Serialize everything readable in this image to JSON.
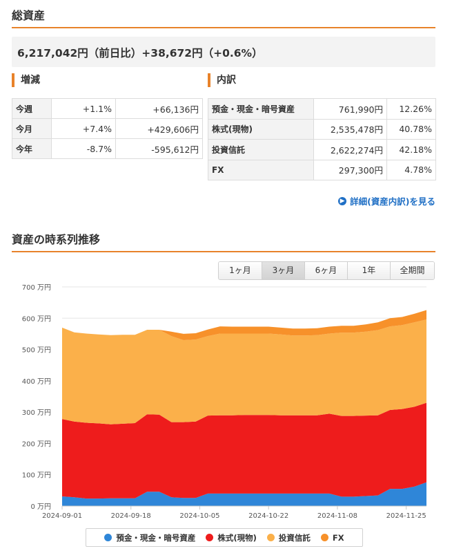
{
  "header": {
    "title": "総資産"
  },
  "total": {
    "amount": "6,217,042円",
    "prefix": "（前日比）",
    "change": "+38,672円",
    "change_pct": "（+0.6%）"
  },
  "change_section": {
    "title": "増減",
    "rows": [
      {
        "label": "今週",
        "pct": "+1.1%",
        "amount": "+66,136円"
      },
      {
        "label": "今月",
        "pct": "+7.4%",
        "amount": "+429,606円"
      },
      {
        "label": "今年",
        "pct": "-8.7%",
        "amount": "-595,612円"
      }
    ]
  },
  "breakdown_section": {
    "title": "内訳",
    "rows": [
      {
        "label": "預金・現金・暗号資産",
        "amount": "761,990円",
        "pct": "12.26%"
      },
      {
        "label": "株式(現物)",
        "amount": "2,535,478円",
        "pct": "40.78%"
      },
      {
        "label": "投資信託",
        "amount": "2,622,274円",
        "pct": "42.18%"
      },
      {
        "label": "FX",
        "amount": "297,300円",
        "pct": "4.78%"
      }
    ],
    "detail_link": "詳細(資産内訳)を見る"
  },
  "trend": {
    "title": "資産の時系列推移",
    "ranges": [
      {
        "label": "1ヶ月",
        "active": false
      },
      {
        "label": "3ヶ月",
        "active": true
      },
      {
        "label": "6ヶ月",
        "active": false
      },
      {
        "label": "1年",
        "active": false
      },
      {
        "label": "全期間",
        "active": false
      }
    ]
  },
  "chart_data": {
    "type": "area",
    "stacked": true,
    "y_unit": "万円",
    "ylim": [
      0,
      700
    ],
    "y_ticks": [
      0,
      100,
      200,
      300,
      400,
      500,
      600,
      700
    ],
    "y_tick_labels": [
      "0 万円",
      "100 万円",
      "200 万円",
      "300 万円",
      "400 万円",
      "500 万円",
      "600 万円",
      "700 万円"
    ],
    "x_ticks": [
      "2024-09-01",
      "2024-09-18",
      "2024-10-05",
      "2024-10-22",
      "2024-11-08",
      "2024-11-25"
    ],
    "x": [
      "2024-09-01",
      "2024-09-04",
      "2024-09-07",
      "2024-09-10",
      "2024-09-13",
      "2024-09-16",
      "2024-09-19",
      "2024-09-22",
      "2024-09-25",
      "2024-09-28",
      "2024-10-01",
      "2024-10-04",
      "2024-10-07",
      "2024-10-10",
      "2024-10-13",
      "2024-10-16",
      "2024-10-19",
      "2024-10-22",
      "2024-10-25",
      "2024-10-28",
      "2024-10-31",
      "2024-11-03",
      "2024-11-06",
      "2024-11-09",
      "2024-11-12",
      "2024-11-15",
      "2024-11-18",
      "2024-11-21",
      "2024-11-24",
      "2024-11-27",
      "2024-11-30"
    ],
    "series": [
      {
        "name": "預金・現金・暗号資産",
        "color": "#2f86d8",
        "values": [
          31,
          28,
          24,
          24,
          25,
          25,
          25,
          46,
          46,
          28,
          26,
          26,
          40,
          40,
          40,
          40,
          40,
          40,
          40,
          40,
          40,
          40,
          40,
          30,
          30,
          32,
          34,
          55,
          55,
          62,
          76
        ]
      },
      {
        "name": "株式(現物)",
        "color": "#ee1c1c",
        "values": [
          247,
          242,
          242,
          240,
          236,
          238,
          240,
          247,
          246,
          240,
          242,
          244,
          249,
          250,
          250,
          251,
          251,
          251,
          250,
          250,
          250,
          250,
          255,
          258,
          258,
          257,
          256,
          252,
          255,
          255,
          254
        ]
      },
      {
        "name": "投資信託",
        "color": "#fbb04a",
        "values": [
          292,
          285,
          285,
          284,
          285,
          284,
          282,
          270,
          271,
          275,
          262,
          262,
          254,
          261,
          261,
          260,
          260,
          260,
          258,
          255,
          255,
          256,
          256,
          266,
          266,
          268,
          272,
          267,
          268,
          270,
          266
        ]
      },
      {
        "name": "FX",
        "color": "#f7912a",
        "values": [
          0,
          0,
          0,
          0,
          0,
          0,
          0,
          0,
          0,
          14,
          20,
          20,
          21,
          23,
          22,
          22,
          22,
          22,
          22,
          22,
          22,
          22,
          22,
          22,
          22,
          23,
          25,
          26,
          26,
          27,
          30
        ]
      }
    ],
    "legend": [
      "預金・現金・暗号資産",
      "株式(現物)",
      "投資信託",
      "FX"
    ],
    "legend_position": "bottom"
  }
}
